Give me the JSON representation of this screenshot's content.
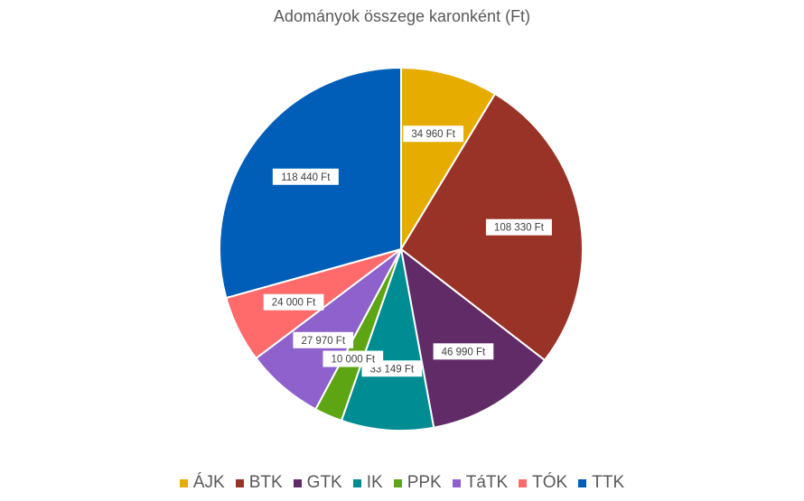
{
  "chart_data": {
    "type": "pie",
    "title": "Adományok összege karonként (Ft)",
    "categories": [
      "ÁJK",
      "BTK",
      "GTK",
      "IK",
      "PPK",
      "TáTK",
      "TÓK",
      "TTK"
    ],
    "values": [
      34960,
      108330,
      46990,
      33149,
      10000,
      27970,
      24000,
      118440
    ],
    "data_labels": [
      "34 960 Ft",
      "108 330 Ft",
      "46 990 Ft",
      "33 149 Ft",
      "10 000 Ft",
      "27 970 Ft",
      "24 000 Ft",
      "118 440 Ft"
    ],
    "colors": [
      "#E6AC00",
      "#9A3327",
      "#612B68",
      "#008C93",
      "#5DA512",
      "#8F61CC",
      "#FF6B6B",
      "#005EB8"
    ],
    "legend_position": "bottom",
    "start_angle": "top, clockwise"
  }
}
